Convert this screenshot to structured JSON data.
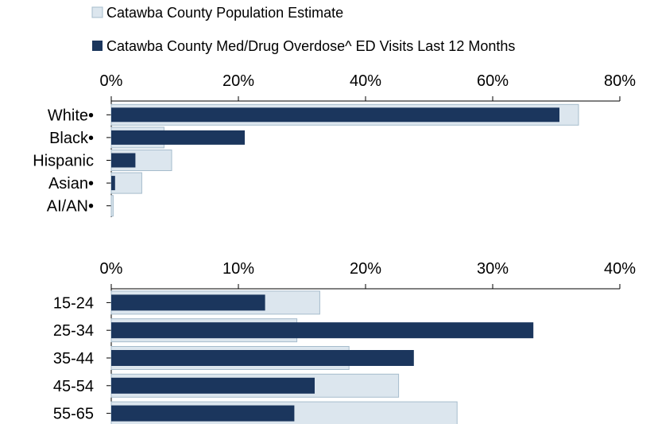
{
  "legend": {
    "population_label": "Catawba County Population Estimate",
    "ed_visits_label": "Catawba County Med/Drug Overdose^ ED Visits Last 12 Months"
  },
  "colors": {
    "population_fill": "#dce6ee",
    "population_stroke": "#a6bccc",
    "ed_visits_fill": "#1b365d",
    "axis": "#000000"
  },
  "chart_data": [
    {
      "type": "bar",
      "orientation": "horizontal",
      "categories": [
        "White•",
        "Black•",
        "Hispanic",
        "Asian•",
        "AI/AN•"
      ],
      "series": [
        {
          "name": "Catawba County Population Estimate",
          "values": [
            73.5,
            8.3,
            9.5,
            4.8,
            0.3
          ]
        },
        {
          "name": "Catawba County Med/Drug Overdose^ ED Visits Last 12 Months",
          "values": [
            70.5,
            21.0,
            3.8,
            0.6,
            0.0
          ]
        }
      ],
      "xlim": [
        0,
        80
      ],
      "xticks": [
        "0%",
        "20%",
        "40%",
        "60%",
        "80%"
      ],
      "tick_position": "top"
    },
    {
      "type": "bar",
      "orientation": "horizontal",
      "categories": [
        "15-24",
        "25-34",
        "35-44",
        "45-54",
        "55-65"
      ],
      "series": [
        {
          "name": "Catawba County Population Estimate",
          "values": [
            16.4,
            14.6,
            18.7,
            22.6,
            27.2
          ]
        },
        {
          "name": "Catawba County Med/Drug Overdose^ ED Visits Last 12 Months",
          "values": [
            12.1,
            33.2,
            23.8,
            16.0,
            14.4
          ]
        }
      ],
      "xlim": [
        0,
        40
      ],
      "xticks": [
        "0%",
        "10%",
        "20%",
        "30%",
        "40%"
      ],
      "tick_position": "top"
    }
  ]
}
